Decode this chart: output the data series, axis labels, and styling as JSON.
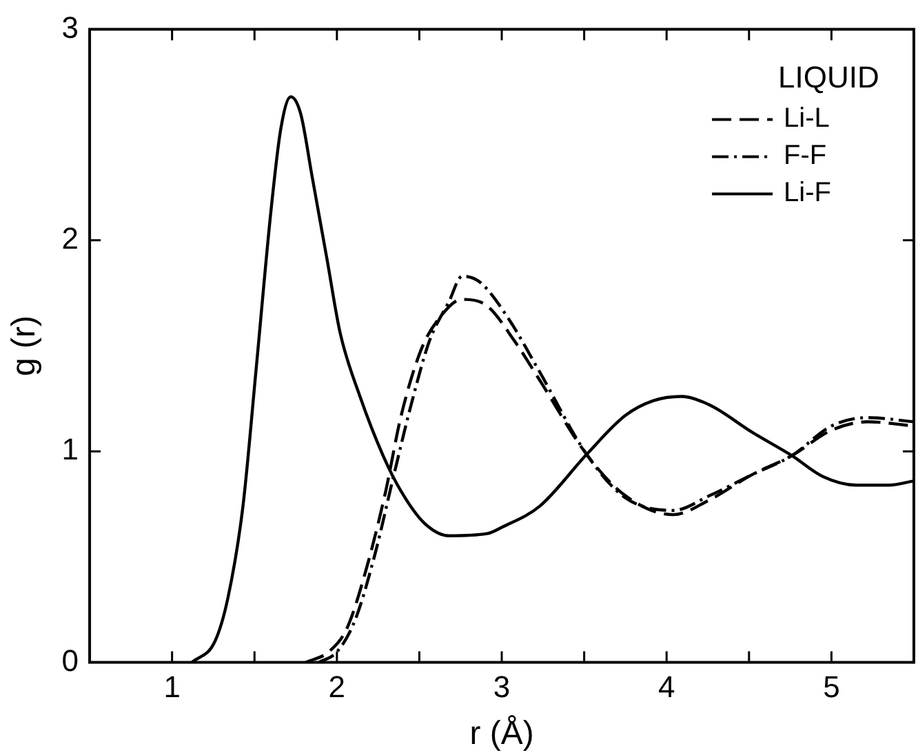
{
  "chart_data": {
    "type": "line",
    "xlabel": "r (Å)",
    "ylabel": "g (r)",
    "legend_title": "LIQUID",
    "legend": "top right",
    "grid": false,
    "marker": "none",
    "xlim": [
      0.5,
      5.5
    ],
    "xticks": [
      1,
      {
        "value": 1.5,
        "label": null
      },
      2,
      {
        "value": 2.5,
        "label": null
      },
      3,
      {
        "value": 3.5,
        "label": null
      },
      4,
      {
        "value": 4.5,
        "label": null
      },
      5
    ],
    "ylim": [
      0,
      3
    ],
    "yticks": [
      0,
      1,
      2,
      3
    ],
    "series": [
      {
        "name": "Li-L",
        "color": "#000000",
        "line_style": "dashed",
        "x": [
          1.81,
          1.95,
          2.06,
          2.17,
          2.29,
          2.39,
          2.51,
          2.62,
          2.76,
          2.91,
          3.08,
          3.22,
          3.52,
          3.75,
          4.04,
          4.26,
          4.52,
          4.76,
          5.0,
          5.22,
          5.5
        ],
        "values": [
          0,
          0.05,
          0.16,
          0.42,
          0.79,
          1.17,
          1.48,
          1.63,
          1.72,
          1.69,
          1.52,
          1.35,
          0.98,
          0.79,
          0.7,
          0.77,
          0.89,
          0.98,
          1.1,
          1.14,
          1.12
        ]
      },
      {
        "name": "F-F",
        "color": "#000000",
        "line_style": "dashdot",
        "x": [
          1.89,
          2.0,
          2.11,
          2.23,
          2.34,
          2.45,
          2.56,
          2.68,
          2.76,
          2.87,
          3.04,
          3.22,
          3.52,
          3.75,
          4.04,
          4.26,
          4.52,
          4.76,
          5.0,
          5.22,
          5.5
        ],
        "values": [
          0,
          0.05,
          0.2,
          0.51,
          0.87,
          1.22,
          1.52,
          1.71,
          1.83,
          1.8,
          1.63,
          1.39,
          0.98,
          0.78,
          0.72,
          0.79,
          0.89,
          0.98,
          1.12,
          1.16,
          1.14
        ]
      },
      {
        "name": "Li-F",
        "color": "#000000",
        "line_style": "solid",
        "x": [
          1.12,
          1.26,
          1.34,
          1.43,
          1.51,
          1.6,
          1.66,
          1.72,
          1.78,
          1.85,
          1.94,
          2.02,
          2.14,
          2.28,
          2.39,
          2.53,
          2.68,
          2.91,
          3.0,
          3.23,
          3.52,
          3.75,
          3.92,
          4.09,
          4.26,
          4.52,
          4.76,
          4.95,
          5.15,
          5.35,
          5.5
        ],
        "values": [
          0,
          0.1,
          0.31,
          0.74,
          1.39,
          2.14,
          2.53,
          2.68,
          2.6,
          2.3,
          1.91,
          1.56,
          1.26,
          0.98,
          0.81,
          0.66,
          0.6,
          0.61,
          0.64,
          0.74,
          0.99,
          1.17,
          1.24,
          1.26,
          1.22,
          1.09,
          0.98,
          0.88,
          0.84,
          0.84,
          0.86
        ]
      }
    ]
  }
}
